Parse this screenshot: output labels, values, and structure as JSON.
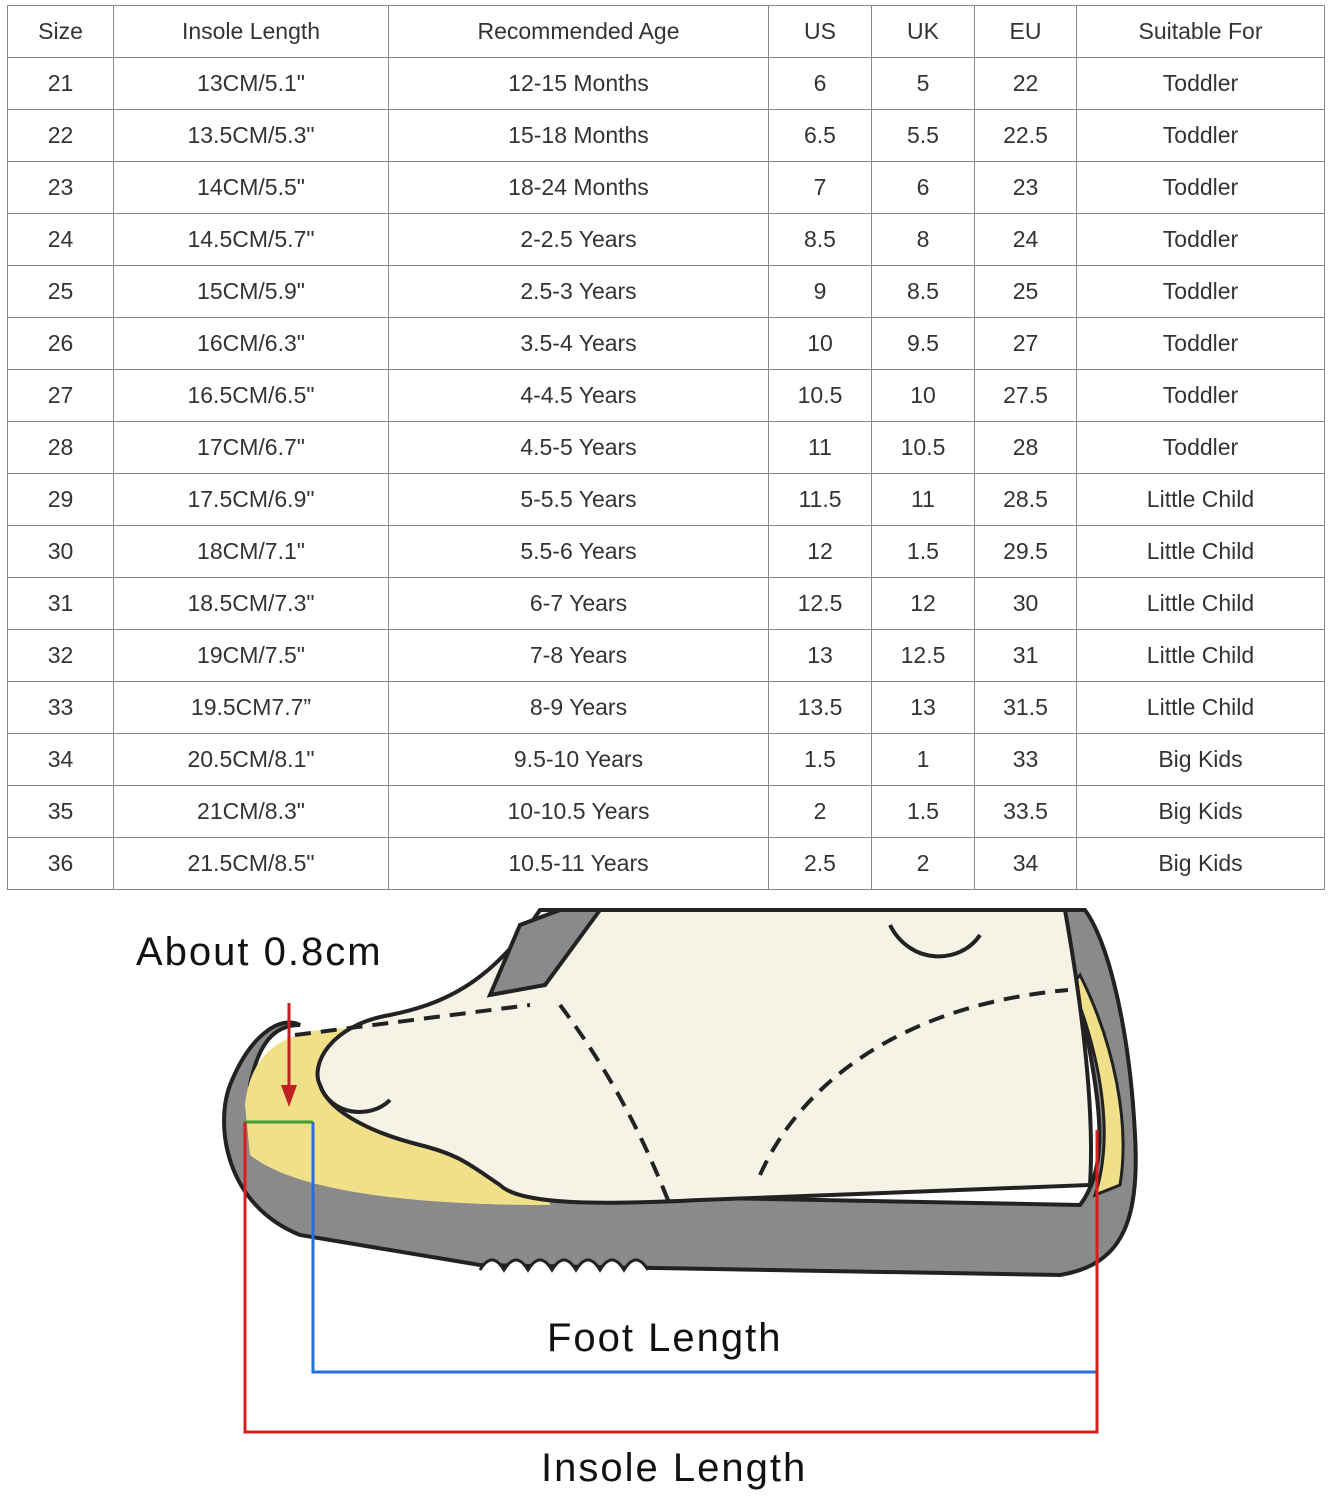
{
  "table": {
    "headers": [
      "Size",
      "Insole Length",
      "Recommended Age",
      "US",
      "UK",
      "EU",
      "Suitable For"
    ],
    "rows": [
      [
        "21",
        "13CM/5.1\"",
        "12-15 Months",
        "6",
        "5",
        "22",
        "Toddler"
      ],
      [
        "22",
        "13.5CM/5.3\"",
        "15-18 Months",
        "6.5",
        "5.5",
        "22.5",
        "Toddler"
      ],
      [
        "23",
        "14CM/5.5\"",
        "18-24 Months",
        "7",
        "6",
        "23",
        "Toddler"
      ],
      [
        "24",
        "14.5CM/5.7\"",
        "2-2.5 Years",
        "8.5",
        "8",
        "24",
        "Toddler"
      ],
      [
        "25",
        "15CM/5.9\"",
        "2.5-3 Years",
        "9",
        "8.5",
        "25",
        "Toddler"
      ],
      [
        "26",
        "16CM/6.3\"",
        "3.5-4 Years",
        "10",
        "9.5",
        "27",
        "Toddler"
      ],
      [
        "27",
        "16.5CM/6.5\"",
        "4-4.5 Years",
        "10.5",
        "10",
        "27.5",
        "Toddler"
      ],
      [
        "28",
        "17CM/6.7\"",
        "4.5-5 Years",
        "11",
        "10.5",
        "28",
        "Toddler"
      ],
      [
        "29",
        "17.5CM/6.9\"",
        "5-5.5 Years",
        "11.5",
        "11",
        "28.5",
        "Little Child"
      ],
      [
        "30",
        "18CM/7.1\"",
        "5.5-6 Years",
        "12",
        "1.5",
        "29.5",
        "Little Child"
      ],
      [
        "31",
        "18.5CM/7.3\"",
        "6-7 Years",
        "12.5",
        "12",
        "30",
        "Little Child"
      ],
      [
        "32",
        "19CM/7.5\"",
        "7-8 Years",
        "13",
        "12.5",
        "31",
        "Little Child"
      ],
      [
        "33",
        "19.5CM7.7”",
        "8-9 Years",
        "13.5",
        "13",
        "31.5",
        "Little Child"
      ],
      [
        "34",
        "20.5CM/8.1\"",
        "9.5-10 Years",
        "1.5",
        "1",
        "33",
        "Big Kids"
      ],
      [
        "35",
        "21CM/8.3\"",
        "10-10.5 Years",
        "2",
        "1.5",
        "33.5",
        "Big Kids"
      ],
      [
        "36",
        "21.5CM/8.5\"",
        "10.5-11 Years",
        "2.5",
        "2",
        "34",
        "Big Kids"
      ]
    ]
  },
  "diagram": {
    "toe_gap_label": "About 0.8cm",
    "foot_length_label": "Foot Length",
    "insole_length_label": "Insole Length",
    "colors": {
      "foot_line": "#2a6fd6",
      "insole_line": "#d42020",
      "toe_gap_line": "#3aa030",
      "arrow": "#c02020",
      "sole": "#8a8a8a",
      "insole": "#f0e08a",
      "foot": "#f5f3e6"
    }
  }
}
